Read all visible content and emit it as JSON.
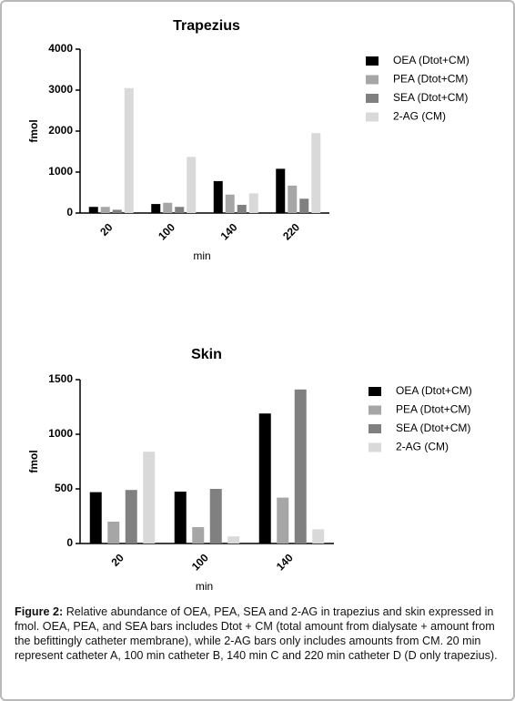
{
  "chart_data": [
    {
      "type": "bar",
      "title": "Trapezius",
      "x_label": "min",
      "y_label": "fmol",
      "categories": [
        "20",
        "100",
        "140",
        "220"
      ],
      "series": [
        {
          "name": "OEA (Dtot+CM)",
          "color": "#000000",
          "values": [
            150,
            220,
            780,
            1080
          ]
        },
        {
          "name": "PEA (Dtot+CM)",
          "color": "#a6a6a6",
          "values": [
            150,
            250,
            450,
            670
          ]
        },
        {
          "name": "SEA (Dtot+CM)",
          "color": "#808080",
          "values": [
            80,
            150,
            200,
            350
          ]
        },
        {
          "name": "2-AG (CM)",
          "color": "#d9d9d9",
          "values": [
            3050,
            1370,
            480,
            1950
          ]
        }
      ],
      "ylim": [
        0,
        4000
      ],
      "yticks": [
        0,
        1000,
        2000,
        3000,
        4000
      ],
      "legend": "right"
    },
    {
      "type": "bar",
      "title": "Skin",
      "x_label": "min",
      "y_label": "fmol",
      "categories": [
        "20",
        "100",
        "140"
      ],
      "series": [
        {
          "name": "OEA (Dtot+CM)",
          "color": "#000000",
          "values": [
            470,
            475,
            1190
          ]
        },
        {
          "name": "PEA (Dtot+CM)",
          "color": "#a6a6a6",
          "values": [
            200,
            150,
            420
          ]
        },
        {
          "name": "SEA (Dtot+CM)",
          "color": "#808080",
          "values": [
            490,
            500,
            1410
          ]
        },
        {
          "name": "2-AG (CM)",
          "color": "#d9d9d9",
          "values": [
            840,
            65,
            130
          ]
        }
      ],
      "ylim": [
        0,
        1500
      ],
      "yticks": [
        0,
        500,
        1000,
        1500
      ],
      "legend": "right"
    }
  ],
  "caption": {
    "label": "Figure 2:",
    "text": "Relative abundance of OEA, PEA, SEA and 2-AG in trapezius and skin expressed in fmol. OEA, PEA, and SEA bars includes Dtot + CM (total amount from dialysate + amount from the befittingly catheter membrane), while 2-AG bars only includes amounts from CM. 20 min represent catheter A, 100 min catheter B, 140 min C and 220 min catheter D (D only trapezius)."
  }
}
